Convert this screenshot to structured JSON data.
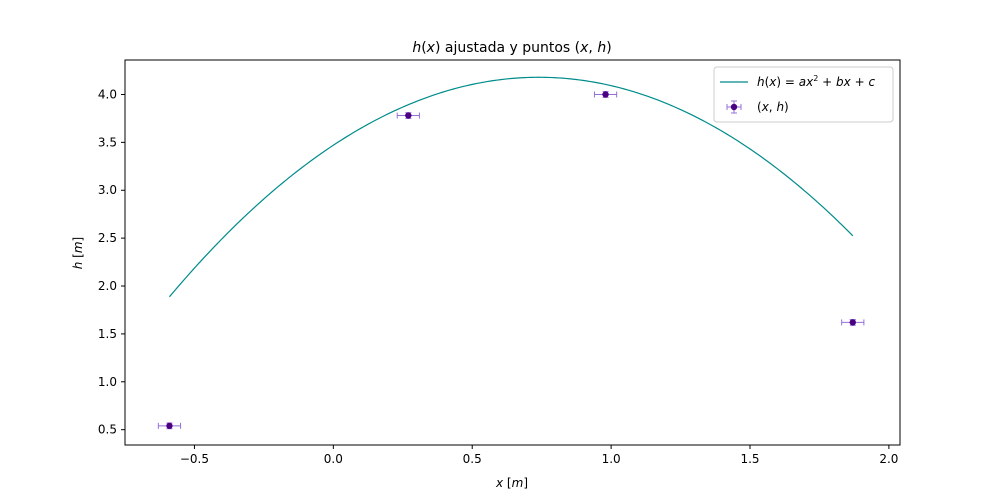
{
  "chart_data": {
    "type": "scatter",
    "title": "h(x) ajustada y puntos (x, h)",
    "xlabel": "x [m]",
    "ylabel": "h [m]",
    "xlim": [
      -0.75,
      2.04
    ],
    "ylim": [
      0.34,
      4.36
    ],
    "xticks": [
      -0.5,
      0.0,
      0.5,
      1.0,
      1.5,
      2.0
    ],
    "xtick_labels": [
      "−0.5",
      "0.0",
      "0.5",
      "1.0",
      "1.5",
      "2.0"
    ],
    "yticks": [
      0.5,
      1.0,
      1.5,
      2.0,
      2.5,
      3.0,
      3.5,
      4.0
    ],
    "ytick_labels": [
      "0.5",
      "1.0",
      "1.5",
      "2.0",
      "2.5",
      "3.0",
      "3.5",
      "4.0"
    ],
    "grid": false,
    "legend_position": "top-right",
    "fit": {
      "name": "h(x) = ax² + bx + c",
      "color": "#008b8b",
      "coefficients": {
        "a": -1.296,
        "b": 1.918,
        "c": 3.47
      },
      "x_range": [
        -0.59,
        1.87
      ]
    },
    "points": {
      "name": "(x, h)",
      "color": "#4b0082",
      "errorbar_color": "#9370db",
      "x": [
        -0.59,
        0.27,
        0.98,
        1.87
      ],
      "y": [
        0.54,
        3.78,
        4.0,
        1.62
      ],
      "x_err": [
        0.04,
        0.04,
        0.04,
        0.04
      ],
      "y_err": [
        0.03,
        0.03,
        0.03,
        0.03
      ]
    }
  }
}
